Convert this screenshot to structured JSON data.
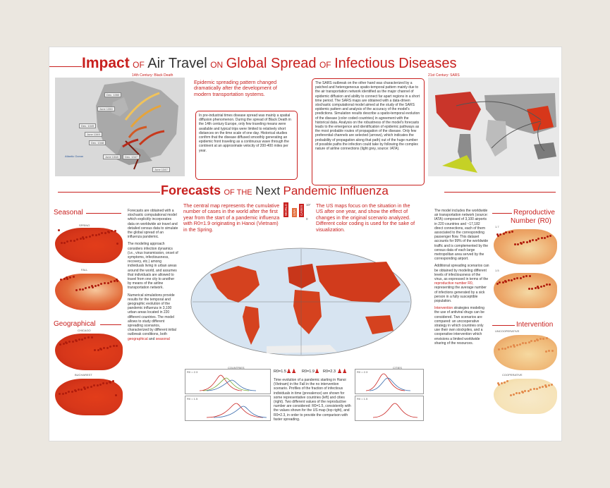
{
  "title": {
    "w1": "Impact",
    "w2": "OF",
    "w3": "Air Travel",
    "w4": "ON",
    "w5": "Global Spread",
    "w6": "OF",
    "w7": "Infectious Diseases"
  },
  "top": {
    "left_map_caption": "14th Century: Black Death",
    "left_map_labels": [
      "Dec. 1350",
      "June 1350",
      "Dec. 1349",
      "June 1349",
      "Dec. 1348",
      "June 1348",
      "Dec. 1347",
      "June 1347"
    ],
    "left_map_region": "Atlantic Ocean",
    "lead": "Epidemic spreading pattern changed dramatically after the development of modern transportation systems.",
    "body1": "In pre-industrial times disease spread was mainly a spatial diffusion phenomenon. During the spread of Black Death in the 14th century Europe, only few traveling means were available and typical trips were limited to relatively short distances on the time scale of one day. Historical studies confirm that the disease diffused smoothly generating an epidemic front traveling as a continuous wave through the continent at an approximate velocity of 200-400 miles per year.",
    "body2": "The SARS outbreak on the other hand was characterized by a patched and heterogeneous spatio-temporal pattern mainly due to the air transportation network identified as the major channel of epidemic diffusion and ability to connect far apart regions in a short time period. The SARS maps are obtained with a data-driven stochastic computational model aimed at the study of the SARS epidemic pattern and analysis of the accuracy of the model's predictions. Simulation results describe a spatio-temporal evolution of the disease (color coded countries) in agreement with the historical data. Analysis on the robustness of the model's forecasts leads to the emergence and identification of epidemic pathways as the most probable routes of propagation of the disease. Only few preferential channels are selected (arrows), which indicates the probability of propagation along that path) out of the huge number of possible paths the infection could take by following the complex nature of airline connections (light grey, source: IATA).",
    "right_map_caption": "21st Century: SARS"
  },
  "forecast_title": {
    "w1": "Forecasts",
    "w2": "OF THE",
    "w3": "Next",
    "w4": "Pandemic Influenza"
  },
  "left_col": {
    "seasonal": "Seasonal",
    "spring": "SPRING",
    "fall": "FALL",
    "geographical": "Geographical",
    "chicago": "CHICAGO",
    "bucharest": "BUCHAREST"
  },
  "left_text": {
    "p1": "Forecasts are obtained with a stochastic computational model which explicitly incorporates data on worldwide air travel and detailed census data to simulate the global spread of an influenza pandemic.",
    "p2": "The modeling approach considers infection dynamics (i.e., virus transmission, onset of symptoms, infectiousness, recovery, etc.) among individuals living in urban areas around the world, and assumes that individuals are allowed to travel from one city to another by means of the airline transportation network.",
    "p3": "Numerical simulations provide results for the temporal and geographic evolution of the pandemic influenza in 3,100 urban areas located in 220 different countries. The model allows to study different spreading scenarios, characterized by different initial outbreak conditions, both",
    "p3_geo": "geographical",
    "p3_and": "and",
    "p3_seas": "seasonal"
  },
  "center": {
    "lead_left": "The central map represents the cumulative number of cases in the world after the first year from the start of a pandemic influenza with R0=1.9 originating in Hanoi (Vietnam) in the Spring.",
    "lead_right": "The US maps focus on the situation in the US after one year, and show the effect of changes in the original scenario analyzed. Different color coding is used for the sake of visualization.",
    "legend_world": "WORLD",
    "legend_us": "USA",
    "legend_cases": "CASES",
    "legend_top": "10⁷",
    "legend_bottom": "0",
    "countries": "COUNTRIES",
    "cities": "CITIES",
    "r_values": [
      "R0=1.5",
      "R0=1.9",
      "R0=2.3"
    ],
    "chart_labels": [
      "R0 = 2.3",
      "R0 = 1.5",
      "R0 = 2.3",
      "R0 = 1.5"
    ],
    "caption": "Time evolution of a pandemic starting in Hanoi (Vietnam) in the Fall in the no intervention scenario. Profiles of the fraction of infectious individuals in time (prevalence) are shown for some representative countries (left) and cities (right). Two different values of the reproductive number are considered:  R0=1.5, consistently with the values shown for the US map (top right), and R0=2.3, in order to provide the comparison with faster spreading."
  },
  "right_text": {
    "p1": "The model includes the worldwide air transportation network (source: IATA) composed of 3,100 airports in 220 countries and ~17,182 direct connections, each of them associated to the corresponding passenger flow. This dataset accounts for 99% of the worldwide traffic and is complemented by the census data of each large metropolitan area served by the corresponding airport.",
    "p2": "Additional spreading scenarios can be obtained by modeling different levels of infectiousness of the virus, as expressed in terms of the",
    "p2_red": "reproductive number R0,",
    "p2_tail": "representing the average number of infections generated by a sick person in a fully susceptible population.",
    "p3_red": "Intervention",
    "p3": "strategies modeling the use of antiviral drugs can be considered. Two scenarios are compared: an uncooperative strategy in which countries only use their own stockpiles, and a cooperative intervention which envisions a limited worldwide sharing of the resources."
  },
  "right_col": {
    "reproductive": "Reproductive",
    "number": "Number (R0)",
    "r17": "1.7",
    "r15": "1.5",
    "intervention": "Intervention",
    "uncooperative": "UNCOOPERATIVE",
    "cooperative": "COOPERATIVE"
  },
  "colors": {
    "accent": "#c8201e",
    "map_red": "#d7371a",
    "map_light": "#f6e3b8",
    "mat": "#ebe7e0"
  }
}
